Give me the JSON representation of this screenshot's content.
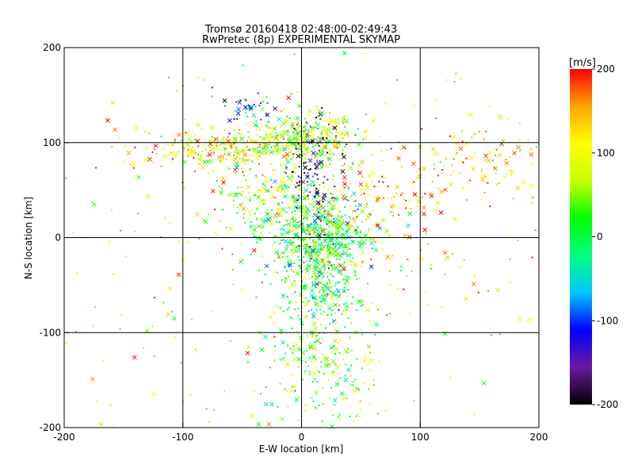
{
  "chart_data": {
    "type": "scatter",
    "title": "Tromsø 20160418 02:48:00-02:49:43",
    "subtitle": "RwPretec (8p) EXPERIMENTAL SKYMAP",
    "xlabel": "E-W location [km]",
    "ylabel": "N-S location [km]",
    "xlim": [
      -200,
      200
    ],
    "ylim": [
      -200,
      200
    ],
    "xticks": [
      -200,
      -100,
      0,
      100,
      200
    ],
    "yticks": [
      -200,
      -100,
      0,
      100,
      200
    ],
    "grid": true,
    "colorbar": {
      "label": "[m/s]",
      "min": -200,
      "max": 200,
      "ticks": [
        200,
        100,
        0,
        -100,
        -200
      ],
      "colormap": [
        "#000000",
        "#6a1aa0",
        "#0000ff",
        "#00c8ff",
        "#00ff80",
        "#00ff00",
        "#c8ff00",
        "#ffff00",
        "#ffa500",
        "#ff0000"
      ]
    },
    "clusters": [
      {
        "x": 0,
        "y": 105,
        "sx": 25,
        "sy": 12,
        "n": 350,
        "v": 60
      },
      {
        "x": -65,
        "y": 92,
        "sx": 40,
        "sy": 10,
        "n": 230,
        "v": 110
      },
      {
        "x": 15,
        "y": 0,
        "sx": 22,
        "sy": 22,
        "n": 480,
        "v": 5
      },
      {
        "x": 15,
        "y": -55,
        "sx": 18,
        "sy": 25,
        "n": 230,
        "v": 20
      },
      {
        "x": 15,
        "y": -140,
        "sx": 25,
        "sy": 35,
        "n": 200,
        "v": 40
      },
      {
        "x": -15,
        "y": 40,
        "sx": 35,
        "sy": 22,
        "n": 230,
        "v": 50
      },
      {
        "x": 60,
        "y": 35,
        "sx": 35,
        "sy": 25,
        "n": 150,
        "v": 150
      },
      {
        "x": 145,
        "y": 80,
        "sx": 25,
        "sy": 18,
        "n": 90,
        "v": 120
      },
      {
        "x": -50,
        "y": 135,
        "sx": 12,
        "sy": 10,
        "n": 40,
        "v": -90
      },
      {
        "x": 10,
        "y": 70,
        "sx": 10,
        "sy": 30,
        "n": 100,
        "v": -160
      },
      {
        "x": 0,
        "y": 0,
        "sx": 140,
        "sy": 150,
        "n": 400,
        "v": 90
      }
    ]
  }
}
